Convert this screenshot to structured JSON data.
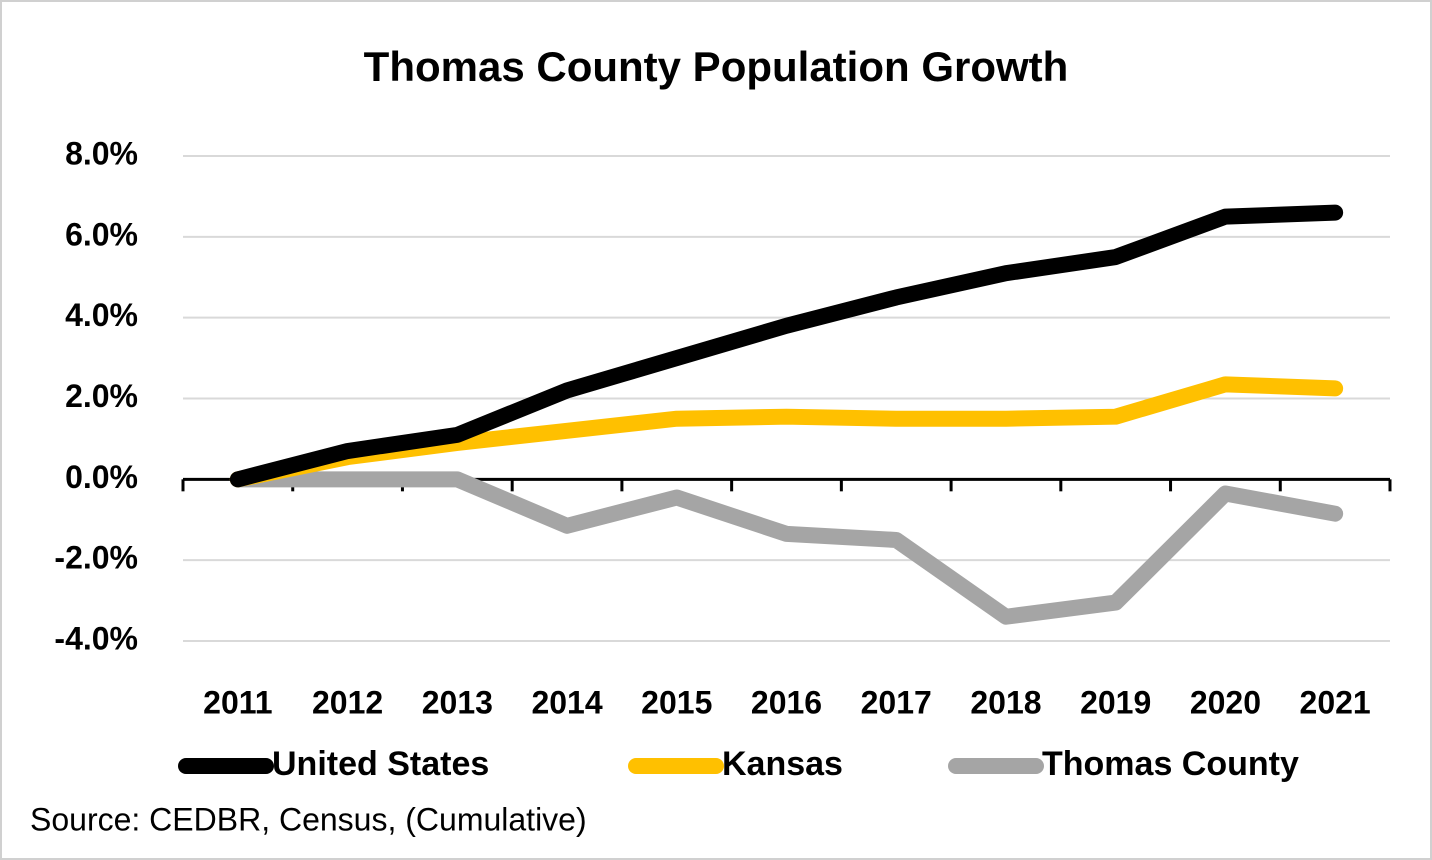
{
  "chart_data": {
    "type": "line",
    "title": "Thomas County Population Growth",
    "source": "Source: CEDBR, Census, (Cumulative)",
    "categories": [
      "2011",
      "2012",
      "2013",
      "2014",
      "2015",
      "2016",
      "2017",
      "2018",
      "2019",
      "2020",
      "2021"
    ],
    "series": [
      {
        "name": "United States",
        "color": "#000000",
        "values": [
          0,
          0.7,
          1.1,
          2.2,
          3.0,
          3.8,
          4.5,
          5.1,
          5.5,
          6.5,
          6.6
        ]
      },
      {
        "name": "Kansas",
        "color": "#ffc000",
        "values": [
          0,
          0.55,
          0.9,
          1.2,
          1.5,
          1.55,
          1.5,
          1.5,
          1.55,
          2.35,
          2.25
        ]
      },
      {
        "name": "Thomas County",
        "color": "#a5a5a5",
        "values": [
          0,
          0,
          0,
          -1.15,
          -0.45,
          -1.35,
          -1.5,
          -3.4,
          -3.05,
          -0.35,
          -0.85
        ]
      }
    ],
    "ylim": [
      -4,
      8
    ],
    "yticks": [
      {
        "value": -4,
        "label": "-4.0%"
      },
      {
        "value": -2,
        "label": "-2.0%"
      },
      {
        "value": 0,
        "label": "0.0%"
      },
      {
        "value": 2,
        "label": "2.0%"
      },
      {
        "value": 4,
        "label": "4.0%"
      },
      {
        "value": 6,
        "label": "6.0%"
      },
      {
        "value": 8,
        "label": "8.0%"
      }
    ],
    "grid": true,
    "legend": "bottom"
  }
}
